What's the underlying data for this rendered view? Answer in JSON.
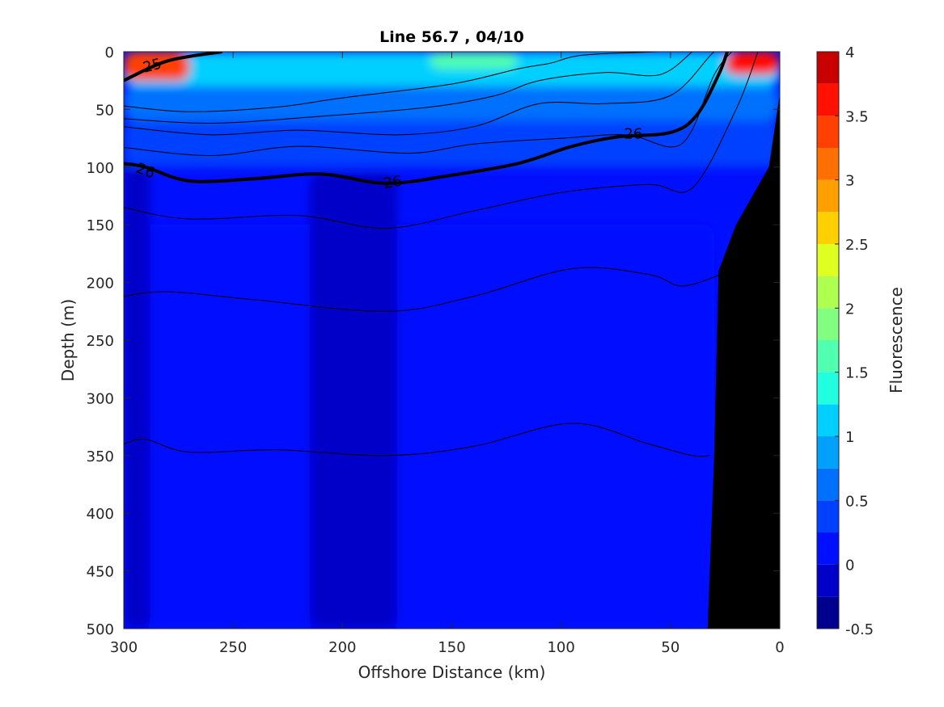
{
  "chart_data": {
    "type": "heatmap",
    "title": "Line 56.7 , 04/10",
    "xlabel": "Offshore Distance (km)",
    "ylabel": "Depth (m)",
    "xlim": [
      300,
      0
    ],
    "ylim": [
      500,
      0
    ],
    "x_direction": "reversed",
    "y_direction": "reversed",
    "x_ticks": [
      "300",
      "250",
      "200",
      "150",
      "100",
      "50",
      "0"
    ],
    "y_ticks": [
      "0",
      "50",
      "100",
      "150",
      "200",
      "250",
      "300",
      "350",
      "400",
      "450",
      "500"
    ],
    "colorbar": {
      "label": "Fluorescence",
      "range": [
        -0.5,
        4
      ],
      "levels": [
        -0.5,
        -0.25,
        0,
        0.25,
        0.5,
        0.75,
        1,
        1.25,
        1.5,
        1.75,
        2,
        2.25,
        2.5,
        2.75,
        3,
        3.25,
        3.5,
        3.75,
        4
      ],
      "tick_labels": [
        "4",
        "3.5",
        "3",
        "2.5",
        "2",
        "1.5",
        "1",
        "0.5",
        "0",
        "-0.5"
      ],
      "colors": [
        "#00008f",
        "#0000c8",
        "#0010ff",
        "#0040ff",
        "#0070ff",
        "#00a0ff",
        "#00d0ff",
        "#20ffdf",
        "#50ffaf",
        "#80ff80",
        "#afff50",
        "#dfff20",
        "#ffd000",
        "#ffa000",
        "#ff7000",
        "#ff4000",
        "#ff1000",
        "#c80000"
      ]
    },
    "field_regions": [
      {
        "level": 0.1,
        "description": "background, depth 150-500 m",
        "x_range": [
          300,
          30
        ],
        "y_range": [
          150,
          500
        ]
      },
      {
        "level": -0.15,
        "description": "column near 290-300 km",
        "x_range": [
          300,
          288
        ],
        "y_range": [
          100,
          500
        ]
      },
      {
        "level": -0.15,
        "description": "column near 175-210 km",
        "x_range": [
          215,
          175
        ],
        "y_range": [
          105,
          500
        ]
      },
      {
        "level": 0.35,
        "description": "layer 60-100 m",
        "x_range": [
          300,
          0
        ],
        "y_range": [
          60,
          100
        ]
      },
      {
        "level": 0.6,
        "description": "layer 30-60 m",
        "x_range": [
          300,
          0
        ],
        "y_range": [
          30,
          60
        ]
      },
      {
        "level": 1.1,
        "description": "surface layer 0-30 m",
        "x_range": [
          300,
          0
        ],
        "y_range": [
          0,
          30
        ]
      },
      {
        "level": 1.6,
        "description": "surface maxima 150-120 km and 290-270 km",
        "x_range": [
          160,
          120
        ],
        "y_range": [
          0,
          15
        ]
      },
      {
        "level": 3.3,
        "description": "surface maximum 300-280 km",
        "x_range": [
          300,
          270
        ],
        "y_range": [
          0,
          25
        ]
      },
      {
        "level": 3.6,
        "description": "surface maximum 20-0 km",
        "x_range": [
          25,
          0
        ],
        "y_range": [
          0,
          20
        ]
      }
    ],
    "contours": [
      {
        "level": "25",
        "bold": true,
        "label_text": "25",
        "x": [
          300,
          280,
          255
        ],
        "y": [
          25,
          8,
          0
        ]
      },
      {
        "level": "26",
        "bold": true,
        "label_text": "26",
        "x": [
          300,
          290,
          270,
          240,
          210,
          180,
          150,
          120,
          95,
          75,
          50,
          38,
          28,
          24
        ],
        "y": [
          97,
          100,
          112,
          110,
          106,
          114,
          107,
          97,
          82,
          74,
          70,
          55,
          20,
          0
        ]
      },
      {
        "level": "",
        "bold": false,
        "x": [
          300,
          270,
          230,
          200,
          150,
          120,
          105,
          90,
          55,
          40
        ],
        "y": [
          47,
          52,
          48,
          40,
          28,
          15,
          10,
          3,
          0,
          0
        ]
      },
      {
        "level": "",
        "bold": false,
        "x": [
          300,
          260,
          210,
          160,
          130,
          110,
          80,
          55,
          40
        ],
        "y": [
          58,
          62,
          56,
          48,
          38,
          25,
          18,
          20,
          0
        ]
      },
      {
        "level": "",
        "bold": false,
        "x": [
          300,
          260,
          220,
          175,
          140,
          110,
          80,
          50,
          30,
          24
        ],
        "y": [
          65,
          72,
          68,
          72,
          65,
          45,
          45,
          38,
          0,
          0
        ]
      },
      {
        "level": "",
        "bold": false,
        "x": [
          300,
          260,
          220,
          170,
          140,
          100,
          70,
          45,
          30,
          22
        ],
        "y": [
          83,
          90,
          82,
          88,
          80,
          75,
          72,
          80,
          20,
          0
        ]
      },
      {
        "level": "",
        "bold": false,
        "x": [
          300,
          270,
          220,
          180,
          140,
          100,
          60,
          40,
          20,
          10
        ],
        "y": [
          135,
          145,
          142,
          153,
          138,
          122,
          115,
          118,
          50,
          0
        ]
      },
      {
        "level": "",
        "bold": false,
        "x": [
          300,
          280,
          240,
          180,
          140,
          95,
          60,
          45,
          28
        ],
        "y": [
          212,
          208,
          215,
          225,
          212,
          188,
          193,
          203,
          194
        ]
      },
      {
        "level": "",
        "bold": false,
        "x": [
          300,
          290,
          270,
          230,
          180,
          140,
          95,
          60,
          40,
          32
        ],
        "y": [
          340,
          336,
          347,
          345,
          350,
          342,
          322,
          340,
          350,
          350
        ]
      }
    ],
    "bathymetry": {
      "label": "",
      "x": [
        33,
        30,
        28,
        20,
        5,
        0
      ],
      "y": [
        500,
        350,
        190,
        150,
        100,
        37
      ]
    }
  }
}
